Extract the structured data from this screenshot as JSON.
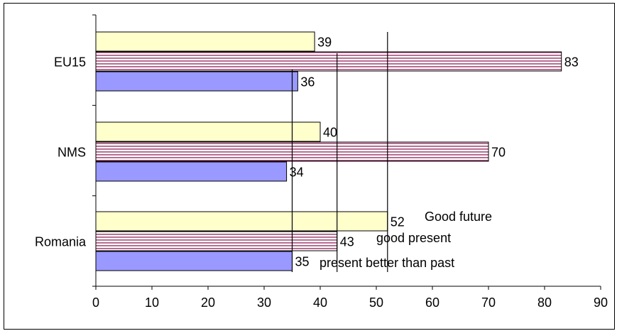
{
  "chart_data": {
    "type": "bar",
    "orientation": "horizontal",
    "categories": [
      "EU15",
      "NMS",
      "Romania"
    ],
    "series": [
      {
        "name": "Good future",
        "values": [
          39,
          40,
          52
        ],
        "color": "#ffffcc",
        "pattern": "solid"
      },
      {
        "name": "good present",
        "values": [
          83,
          70,
          43
        ],
        "color": "#993366",
        "pattern": "horizontal-stripes"
      },
      {
        "name": "present better than past",
        "values": [
          36,
          34,
          35
        ],
        "color": "#9999ff",
        "pattern": "solid"
      }
    ],
    "xlim": [
      0,
      90
    ],
    "xticks": [
      0,
      10,
      20,
      30,
      40,
      50,
      60,
      70,
      80,
      90
    ],
    "reference_lines": [
      {
        "series": "present better than past",
        "value": 35
      },
      {
        "series": "good present",
        "value": 43
      },
      {
        "series": "Good future",
        "value": 52
      }
    ],
    "grid": false,
    "legend": "none; series names printed beside the Romania bars"
  }
}
